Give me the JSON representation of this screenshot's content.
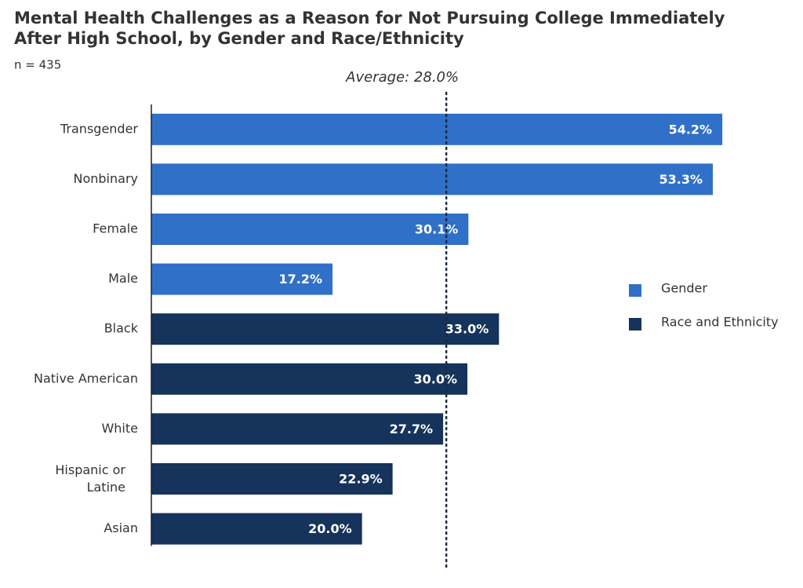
{
  "chart_data": {
    "type": "bar",
    "orientation": "horizontal",
    "title": "Mental Health Challenges as a Reason for Not Pursuing College Immediately After High School, by Gender and Race/Ethnicity",
    "subtitle": "n = 435",
    "categories": [
      "Transgender",
      "Nonbinary",
      "Female",
      "Male",
      "Black",
      "Native American",
      "White",
      "Hispanic or Latine",
      "Asian"
    ],
    "series": [
      {
        "name": "Gender",
        "color": "#3070c8",
        "values": [
          54.2,
          53.3,
          30.1,
          17.2,
          null,
          null,
          null,
          null,
          null
        ],
        "value_labels": [
          "54.2%",
          "53.3%",
          "30.1%",
          "17.2%",
          null,
          null,
          null,
          null,
          null
        ]
      },
      {
        "name": "Race and Ethnicity",
        "color": "#16335c",
        "values": [
          null,
          null,
          null,
          null,
          33.0,
          30.0,
          27.7,
          22.9,
          20.0
        ],
        "value_labels": [
          null,
          null,
          null,
          null,
          "33.0%",
          "30.0%",
          "27.7%",
          "22.9%",
          "20.0%"
        ]
      }
    ],
    "average": {
      "value": 28.0,
      "label": "Average: 28.0%"
    },
    "xlim": [
      0,
      60
    ],
    "legend": "right"
  }
}
